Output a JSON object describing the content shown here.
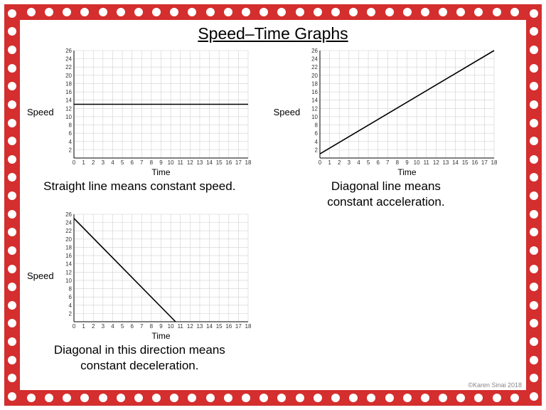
{
  "page": {
    "title": "Speed–Time Graphs",
    "credit": "©Karen Sinai 2018",
    "border_color": "#d42e2e",
    "dot_color": "#ffffff",
    "dot_count_h": 30,
    "dot_count_v": 22
  },
  "chart_defaults": {
    "xlim": [
      0,
      18
    ],
    "ylim": [
      0,
      26
    ],
    "ytick_step": 2,
    "xtick_step": 1,
    "grid_color": "#d0d0d0",
    "axis_color": "#000000",
    "background_color": "#ffffff",
    "line_color": "#000000",
    "line_width": 1.6,
    "xlabel": "Time",
    "ylabel_side": "Speed",
    "tick_fontsize": 8,
    "axis_title_fontsize": 12
  },
  "charts": {
    "constant_speed": {
      "type": "line",
      "caption": "Straight line means constant speed.",
      "points": [
        [
          0,
          13
        ],
        [
          18,
          13
        ]
      ]
    },
    "acceleration": {
      "type": "line",
      "caption_l1": "Diagonal line means",
      "caption_l2": "constant acceleration.",
      "points": [
        [
          0,
          1
        ],
        [
          18,
          26
        ]
      ]
    },
    "deceleration": {
      "type": "line",
      "caption_l1": "Diagonal in this direction means",
      "caption_l2": "constant deceleration.",
      "points": [
        [
          0,
          25
        ],
        [
          10.5,
          0
        ]
      ]
    }
  }
}
